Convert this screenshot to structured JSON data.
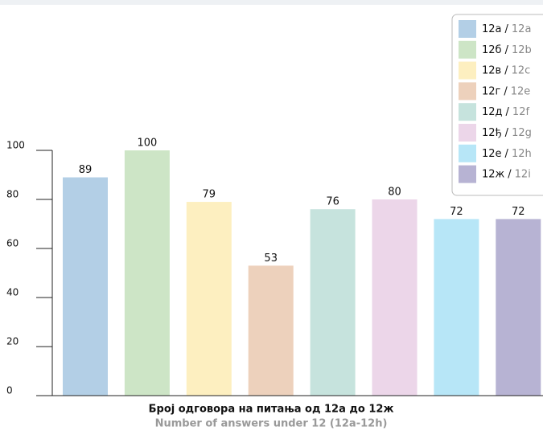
{
  "chart_data": {
    "type": "bar",
    "title": "Број одговора на питања од 12а до 12ж",
    "subtitle": "Number of answers under 12 (12a-12h)",
    "categories": [
      "12а",
      "12б",
      "12в",
      "12г",
      "12д",
      "12ђ",
      "12е",
      "12ж"
    ],
    "categories_en": [
      "12a",
      "12b",
      "12c",
      "12e",
      "12f",
      "12g",
      "12h",
      "12i"
    ],
    "separator": "/",
    "values": [
      89,
      100,
      79,
      53,
      76,
      80,
      72,
      72
    ],
    "colors": [
      "#b3cfe6",
      "#cde5c6",
      "#fdefc0",
      "#edd1bc",
      "#c6e3dd",
      "#ecd6e9",
      "#b7e6f7",
      "#b7b3d3"
    ],
    "ylim": [
      0,
      100
    ],
    "yticks": [
      0,
      20,
      40,
      60,
      80,
      100
    ],
    "grid": false,
    "legend": "top-right"
  }
}
